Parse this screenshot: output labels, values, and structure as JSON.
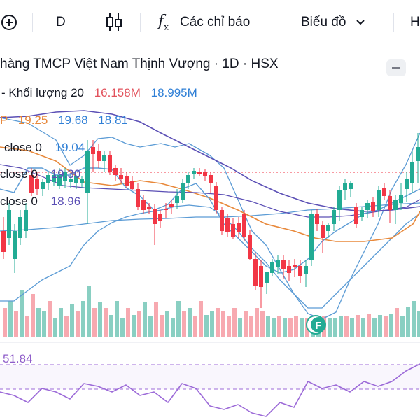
{
  "toolbar": {
    "interval": "D",
    "indicators_label": "Các chỉ báo",
    "chart_type_label": "Biểu đồ",
    "right_cut_label": "H"
  },
  "header": {
    "title": "hàng TMCP Việt Nam Thịnh Vượng · 1D · HSX"
  },
  "legend": {
    "volume_label": "- Khối lượng 20",
    "volume_value": "16.158M",
    "volume_ma_value": "18.995M",
    "price_o": "19.25",
    "price_h": "19.68",
    "price_l": "18.81",
    "ma1_label": "close 0",
    "ma1_value": "19.04",
    "ma2_label": "close 0",
    "ma2_value": "19.30",
    "ma3_label": "close 0",
    "ma3_value": "18.96",
    "rsi_value": "51.84"
  },
  "colors": {
    "up": "#22ab94",
    "down": "#f23645",
    "up_vol": "#89cfc2",
    "down_vol": "#f7a9b0",
    "bollinger": "#5b9bd5",
    "ma_purple": "#5b4fb5",
    "ma_orange": "#e8883a",
    "rsi": "#9c6ad8",
    "volume_red": "#e2525c",
    "volume_blue": "#2962ff",
    "ma_blue_text": "#2f7fd6"
  },
  "icons": {
    "add": "plus-circle-icon",
    "candles": "candlestick-icon",
    "indicators": "fx-icon",
    "dropdown": "chevron-down-icon",
    "collapse": "minus-icon",
    "event": "f-event-icon"
  }
}
